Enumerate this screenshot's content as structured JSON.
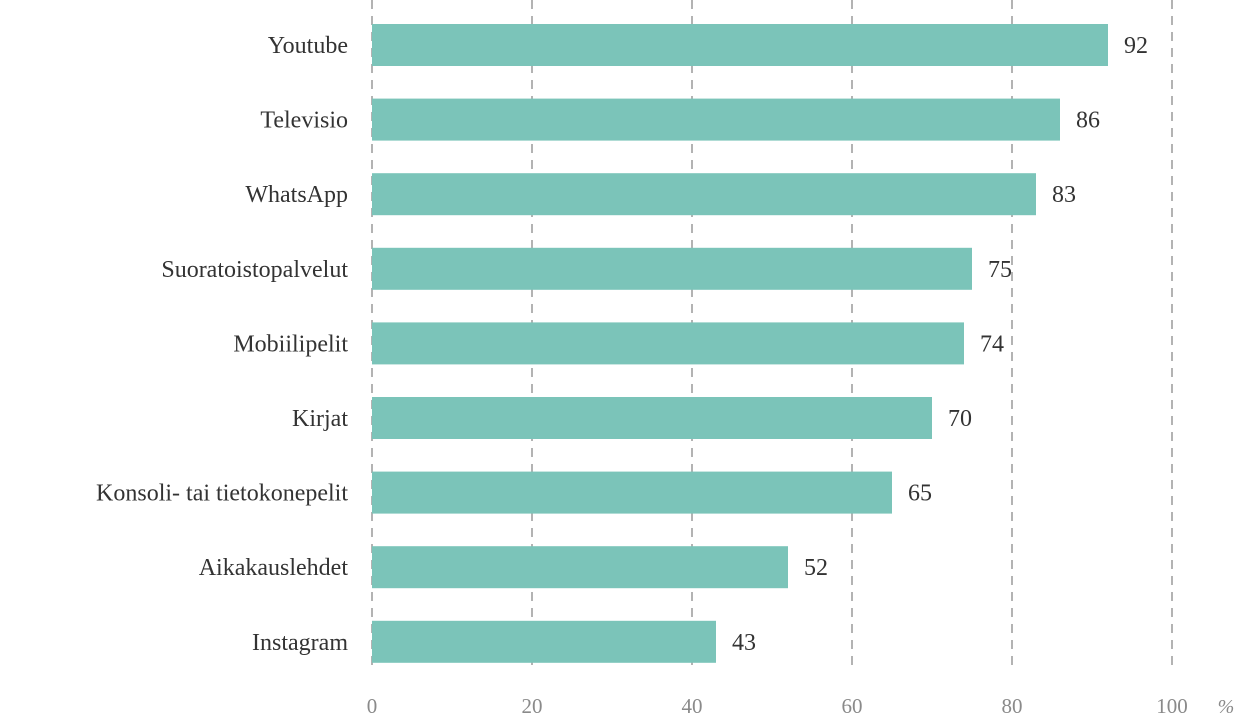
{
  "chart_data": {
    "type": "bar",
    "orientation": "horizontal",
    "categories": [
      "Youtube",
      "Televisio",
      "WhatsApp",
      "Suoratoistopalvelut",
      "Mobiilipelit",
      "Kirjat",
      "Konsoli- tai tietokonepelit",
      "Aikakauslehdet",
      "Instagram"
    ],
    "values": [
      92,
      86,
      83,
      75,
      74,
      70,
      65,
      52,
      43
    ],
    "xlim": [
      0,
      100
    ],
    "xticks": [
      "0",
      "20",
      "40",
      "60",
      "80",
      "100"
    ],
    "unit": "%",
    "grid": "vertical dashed",
    "bar_color": "#7bc4b9"
  }
}
